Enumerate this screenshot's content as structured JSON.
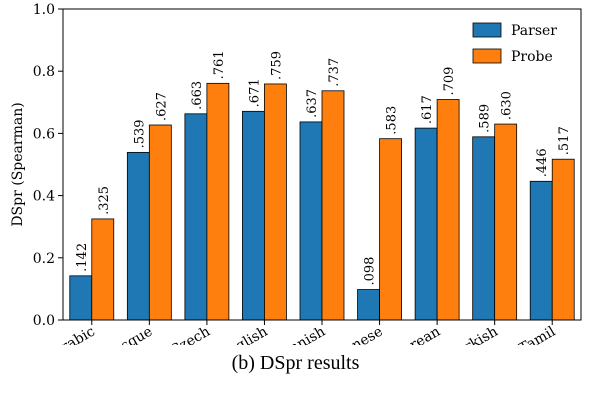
{
  "chart_data": {
    "type": "bar",
    "title": "",
    "xlabel": "",
    "ylabel": "DSpr (Spearman)",
    "ylim": [
      0,
      1.0
    ],
    "yticks": [
      "0.0",
      "0.2",
      "0.4",
      "0.6",
      "0.8",
      "1.0"
    ],
    "ytick_values": [
      0,
      0.2,
      0.4,
      0.6,
      0.8,
      1.0
    ],
    "grid": false,
    "legend_position": "top-right",
    "categories": [
      "Arabic",
      "Basque",
      "Czech",
      "English",
      "Finnish",
      "Japanese",
      "Korean",
      "Turkish",
      "Tamil"
    ],
    "series": [
      {
        "name": "Parser",
        "color": "#1f77b4",
        "values": [
          0.142,
          0.539,
          0.663,
          0.671,
          0.637,
          0.098,
          0.617,
          0.589,
          0.446
        ],
        "labels": [
          ".142",
          ".539",
          ".663",
          ".671",
          ".637",
          ".098",
          ".617",
          ".589",
          ".446"
        ]
      },
      {
        "name": "Probe",
        "color": "#ff7f0e",
        "values": [
          0.325,
          0.627,
          0.761,
          0.759,
          0.737,
          0.583,
          0.709,
          0.63,
          0.517
        ],
        "labels": [
          ".325",
          ".627",
          ".761",
          ".759",
          ".737",
          ".583",
          ".709",
          ".630",
          ".517"
        ]
      }
    ]
  },
  "caption": "(b) DSpr results"
}
